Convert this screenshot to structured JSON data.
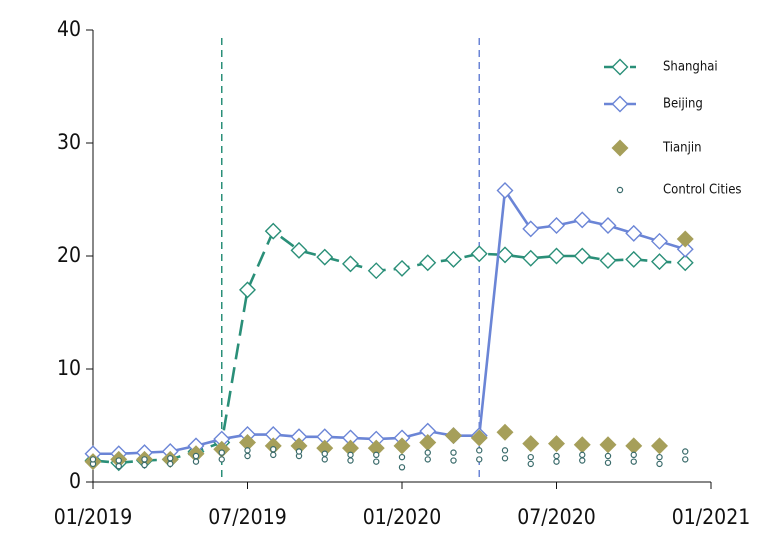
{
  "chart_data": {
    "type": "line",
    "x": [
      "01/2019",
      "02/2019",
      "03/2019",
      "04/2019",
      "05/2019",
      "06/2019",
      "07/2019",
      "08/2019",
      "09/2019",
      "10/2019",
      "11/2019",
      "12/2019",
      "01/2020",
      "02/2020",
      "03/2020",
      "04/2020",
      "05/2020",
      "06/2020",
      "07/2020",
      "08/2020",
      "09/2020",
      "10/2020",
      "11/2020",
      "12/2020"
    ],
    "xlim": [
      "01/2019",
      "01/2021"
    ],
    "xticks": [
      "01/2019",
      "07/2019",
      "01/2020",
      "07/2020",
      "01/2021"
    ],
    "ylim": [
      0,
      40
    ],
    "yticks": [
      0,
      10,
      20,
      30,
      40
    ],
    "vlines": [
      {
        "x": "06/2019",
        "color": "#2a8f78"
      },
      {
        "x": "04/2020",
        "color": "#6b85d6"
      }
    ],
    "legend": "upper right",
    "series": [
      {
        "name": "Shanghai",
        "color": "#2a8f78",
        "line": "dashed",
        "marker": "diamond-open",
        "values": [
          1.9,
          1.7,
          1.9,
          2.0,
          2.7,
          3.5,
          17.0,
          22.2,
          20.5,
          19.9,
          19.3,
          18.7,
          18.9,
          19.4,
          19.7,
          20.2,
          20.1,
          19.8,
          20.0,
          20.0,
          19.6,
          19.7,
          19.5,
          19.4
        ]
      },
      {
        "name": "Beijing",
        "color": "#6b85d6",
        "line": "solid",
        "marker": "diamond-open",
        "values": [
          2.5,
          2.5,
          2.6,
          2.7,
          3.2,
          3.8,
          4.2,
          4.2,
          4.0,
          4.0,
          3.9,
          3.8,
          3.9,
          4.5,
          4.1,
          4.1,
          25.8,
          22.4,
          22.7,
          23.2,
          22.7,
          22.0,
          21.3,
          20.6
        ]
      },
      {
        "name": "Tianjin",
        "color": "#a69f5a",
        "line": "none",
        "marker": "diamond",
        "values": [
          1.8,
          2.0,
          2.0,
          2.0,
          2.5,
          2.9,
          3.5,
          3.2,
          3.2,
          3.0,
          3.0,
          3.0,
          3.2,
          3.5,
          4.1,
          3.9,
          4.4,
          3.4,
          3.4,
          3.3,
          3.3,
          3.2,
          3.2,
          21.5
        ]
      },
      {
        "name": "Control Cities",
        "color": "#3a6b6b",
        "line": "none",
        "marker": "circle-open",
        "x": [
          "01/2019",
          "01/2019",
          "02/2019",
          "02/2019",
          "03/2019",
          "03/2019",
          "04/2019",
          "04/2019",
          "05/2019",
          "05/2019",
          "06/2019",
          "06/2019",
          "07/2019",
          "07/2019",
          "08/2019",
          "08/2019",
          "09/2019",
          "09/2019",
          "10/2019",
          "10/2019",
          "11/2019",
          "11/2019",
          "12/2019",
          "12/2019",
          "01/2020",
          "01/2020",
          "02/2020",
          "02/2020",
          "03/2020",
          "03/2020",
          "04/2020",
          "04/2020",
          "05/2020",
          "05/2020",
          "06/2020",
          "06/2020",
          "07/2020",
          "07/2020",
          "08/2020",
          "08/2020",
          "09/2020",
          "09/2020",
          "10/2020",
          "10/2020",
          "11/2020",
          "11/2020",
          "12/2020",
          "12/2020"
        ],
        "values": [
          1.6,
          2.0,
          1.4,
          1.9,
          1.5,
          2.0,
          1.6,
          2.1,
          1.8,
          2.3,
          2.0,
          2.6,
          2.3,
          2.8,
          2.4,
          2.9,
          2.3,
          2.7,
          2.0,
          2.5,
          1.9,
          2.4,
          1.8,
          2.4,
          1.3,
          2.2,
          2.0,
          2.6,
          1.9,
          2.6,
          2.0,
          2.8,
          2.1,
          2.8,
          1.6,
          2.2,
          1.8,
          2.3,
          1.9,
          2.4,
          1.7,
          2.3,
          1.8,
          2.4,
          1.6,
          2.2,
          2.0,
          2.7
        ]
      }
    ]
  }
}
